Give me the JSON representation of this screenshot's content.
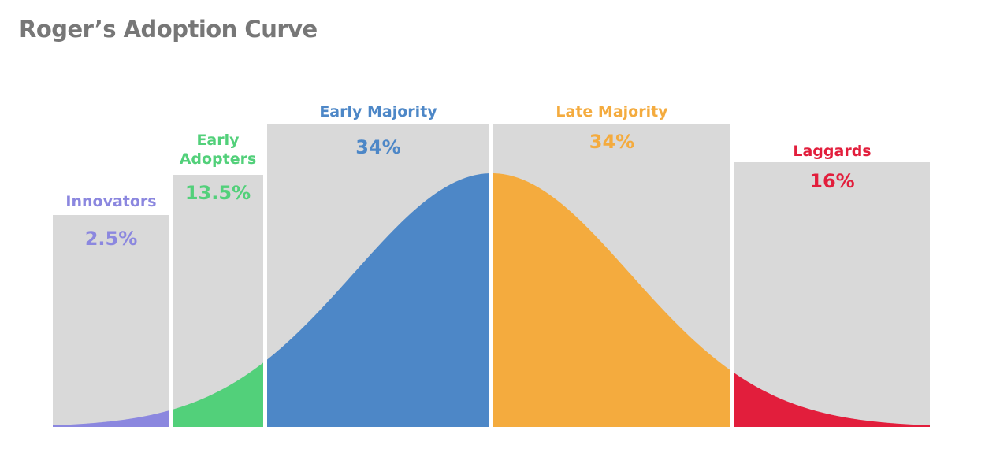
{
  "page": {
    "title": "Roger’s Adoption Curve"
  },
  "chart_data": {
    "type": "area",
    "title": "Roger’s Adoption Curve",
    "distribution": "normal",
    "xlabel": "",
    "ylabel": "",
    "segments": [
      {
        "name": "Innovators",
        "label_lines": [
          "Innovators"
        ],
        "percent_label": "2.5%",
        "value": 2.5,
        "color": "#8B87DF"
      },
      {
        "name": "Early Adopters",
        "label_lines": [
          "Early",
          "Adopters"
        ],
        "percent_label": "13.5%",
        "value": 13.5,
        "color": "#52D07A"
      },
      {
        "name": "Early Majority",
        "label_lines": [
          "Early Majority"
        ],
        "percent_label": "34%",
        "value": 34,
        "color": "#4D87C7"
      },
      {
        "name": "Late Majority",
        "label_lines": [
          "Late Majority"
        ],
        "percent_label": "34%",
        "value": 34,
        "color": "#F4AB3E"
      },
      {
        "name": "Laggards",
        "label_lines": [
          "Laggards"
        ],
        "percent_label": "16%",
        "value": 16,
        "color": "#E21E3C"
      }
    ],
    "background_color": "#D9D9D9"
  }
}
